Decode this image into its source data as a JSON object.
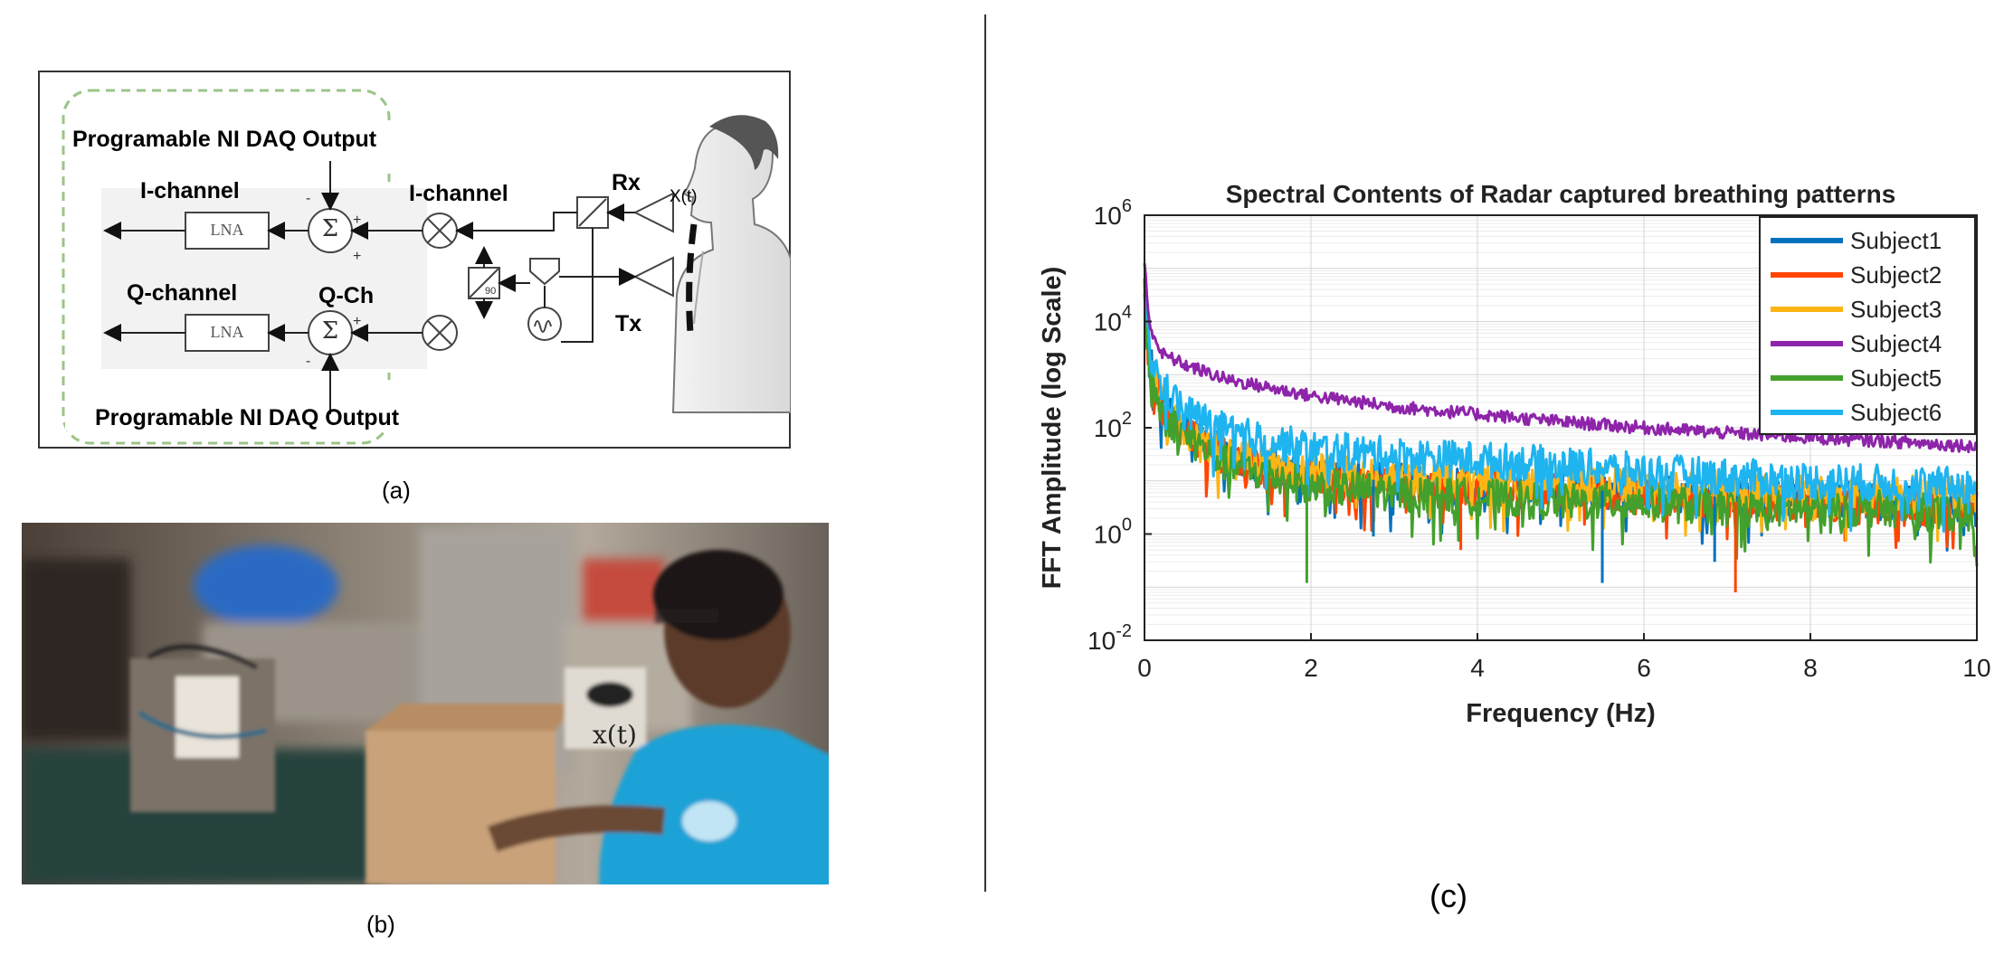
{
  "panel_a": {
    "caption": "(a)",
    "daq_output_top": "Programable  NI DAQ Output",
    "daq_output_bottom": "Programable  NI DAQ Output",
    "i_channel_out": "I-channel",
    "q_channel_out": "Q-channel",
    "i_channel_mix": "I-channel",
    "q_channel_mix": "Q-Ch",
    "lna_top": "LNA",
    "lna_bottom": "LNA",
    "rx": "Rx",
    "tx": "Tx",
    "x_t": "X(t)",
    "sum_symbol": "Σ",
    "phase_label": "90"
  },
  "panel_b": {
    "caption": "(b)",
    "x_t": "x(t)"
  },
  "panel_c": {
    "caption": "(c)"
  },
  "chart_data": {
    "type": "line",
    "title": "Spectral Contents of Radar captured breathing patterns",
    "xlabel": "Frequency (Hz)",
    "ylabel": "FFT Amplitude (log Scale)",
    "xlim": [
      0,
      10
    ],
    "ylim_log10": [
      -2,
      6
    ],
    "yscale": "log",
    "x_ticks": [
      "0",
      "2",
      "4",
      "6",
      "8",
      "10"
    ],
    "y_tick_exponents": [
      "-2",
      "0",
      "2",
      "4",
      "6"
    ],
    "grid": true,
    "legend_position": "top-right",
    "x": [
      0,
      0.05,
      0.2,
      0.5,
      1,
      2,
      3,
      4,
      5,
      6,
      7,
      8,
      9,
      10
    ],
    "series": [
      {
        "name": "Subject1",
        "color": "#0072BD",
        "values": [
          50000,
          2000,
          300,
          90,
          30,
          12,
          10,
          8,
          7,
          6,
          5,
          5,
          4,
          3
        ]
      },
      {
        "name": "Subject2",
        "color": "#FF4500",
        "values": [
          40000,
          1800,
          250,
          80,
          25,
          10,
          8,
          7,
          6,
          5,
          4,
          4,
          3,
          3
        ]
      },
      {
        "name": "Subject3",
        "color": "#FDB515",
        "values": [
          45000,
          2000,
          280,
          90,
          30,
          15,
          12,
          10,
          9,
          8,
          7,
          6,
          6,
          5
        ]
      },
      {
        "name": "Subject4",
        "color": "#8E24AA",
        "values": [
          120000,
          10000,
          2500,
          1500,
          800,
          400,
          250,
          180,
          130,
          100,
          80,
          65,
          55,
          45
        ]
      },
      {
        "name": "Subject5",
        "color": "#43A02C",
        "values": [
          30000,
          1500,
          200,
          70,
          20,
          8,
          6,
          5,
          4,
          4,
          3,
          3,
          3,
          2
        ]
      },
      {
        "name": "Subject6",
        "color": "#1EB4F0",
        "values": [
          60000,
          3000,
          600,
          200,
          80,
          40,
          30,
          25,
          20,
          15,
          12,
          10,
          9,
          8
        ]
      }
    ],
    "dip_points": [
      {
        "series": "Subject5",
        "x": 1.95,
        "y": 0.12
      },
      {
        "series": "Subject1",
        "x": 2.75,
        "y": 0.9
      },
      {
        "series": "Subject2",
        "x": 3.8,
        "y": 0.5
      },
      {
        "series": "Subject1",
        "x": 5.5,
        "y": 0.12
      },
      {
        "series": "Subject2",
        "x": 7.1,
        "y": 0.08
      },
      {
        "series": "Subject1",
        "x": 6.85,
        "y": 0.3
      }
    ]
  }
}
